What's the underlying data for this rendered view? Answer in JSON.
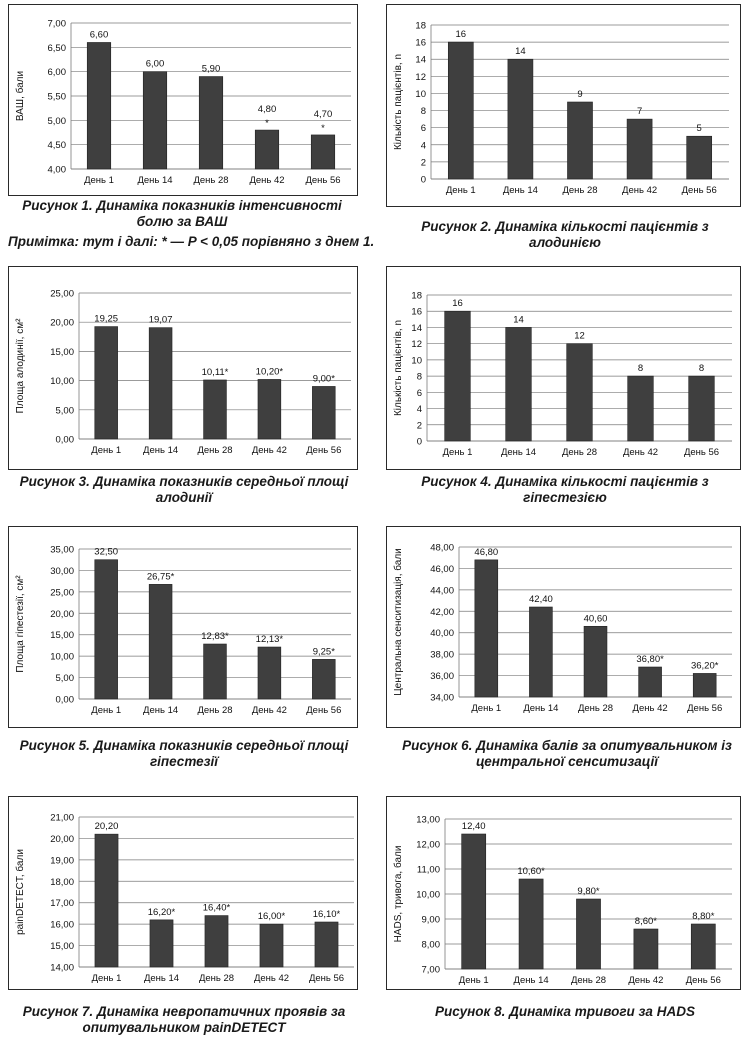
{
  "note": "Примітка: тут і далі: * — P < 0,05 порівняно з днем 1.",
  "chart_data": [
    {
      "type": "bar",
      "categories": [
        "День 1",
        "День 14",
        "День 28",
        "День 42",
        "День 56"
      ],
      "values": [
        6.6,
        6.0,
        5.9,
        4.8,
        4.7
      ],
      "labels": [
        "6,60",
        "6,00",
        "5,90",
        "4,80",
        "4,70"
      ],
      "star_above": [
        false,
        false,
        false,
        true,
        true
      ],
      "ylabel": "ВАШ, бали",
      "ylim": [
        4.0,
        7.0
      ],
      "yticks": [
        4.0,
        4.5,
        5.0,
        5.5,
        6.0,
        6.5,
        7.0
      ],
      "ytick_labels": [
        "4,00",
        "4,50",
        "5,00",
        "5,50",
        "6,00",
        "6,50",
        "7,00"
      ],
      "caption": "Рисунок 1. Динаміка показників інтенсивності болю за ВАШ",
      "grid": true
    },
    {
      "type": "bar",
      "categories": [
        "День 1",
        "День 14",
        "День 28",
        "День 42",
        "День 56"
      ],
      "values": [
        16,
        14,
        9,
        7,
        5
      ],
      "labels": [
        "16",
        "14",
        "9",
        "7",
        "5"
      ],
      "star_above": [
        false,
        false,
        false,
        false,
        false
      ],
      "ylabel": "Кількість пацієнтів, n",
      "ylim": [
        0,
        18
      ],
      "yticks": [
        0,
        2,
        4,
        6,
        8,
        10,
        12,
        14,
        16,
        18
      ],
      "ytick_labels": [
        "0",
        "2",
        "4",
        "6",
        "8",
        "10",
        "12",
        "14",
        "16",
        "18"
      ],
      "caption": "Рисунок 2. Динаміка кількості пацієнтів з алодинією",
      "grid": true
    },
    {
      "type": "bar",
      "categories": [
        "День 1",
        "День 14",
        "День 28",
        "День 42",
        "День 56"
      ],
      "values": [
        19.25,
        19.07,
        10.11,
        10.2,
        9.0
      ],
      "labels": [
        "19,25",
        "19,07",
        "10,11*",
        "10,20*",
        "9,00*"
      ],
      "star_above": [
        false,
        false,
        false,
        false,
        false
      ],
      "ylabel": "Площа алодинії, см²",
      "ylim": [
        0,
        25
      ],
      "yticks": [
        0,
        5,
        10,
        15,
        20,
        25
      ],
      "ytick_labels": [
        "0,00",
        "5,00",
        "10,00",
        "15,00",
        "20,00",
        "25,00"
      ],
      "caption": "Рисунок 3. Динаміка показників середньої площі алодинії",
      "grid": true
    },
    {
      "type": "bar",
      "categories": [
        "День 1",
        "День 14",
        "День 28",
        "День 42",
        "День 56"
      ],
      "values": [
        16,
        14,
        12,
        8,
        8
      ],
      "labels": [
        "16",
        "14",
        "12",
        "8",
        "8"
      ],
      "star_above": [
        false,
        false,
        false,
        false,
        false
      ],
      "ylabel": "Кількість пацієнтів, n",
      "ylim": [
        0,
        18
      ],
      "yticks": [
        0,
        2,
        4,
        6,
        8,
        10,
        12,
        14,
        16,
        18
      ],
      "ytick_labels": [
        "0",
        "2",
        "4",
        "6",
        "8",
        "10",
        "12",
        "14",
        "16",
        "18"
      ],
      "caption": "Рисунок 4. Динаміка кількості пацієнтів з гіпестезією",
      "grid": true
    },
    {
      "type": "bar",
      "categories": [
        "День 1",
        "День 14",
        "День 28",
        "День 42",
        "День 56"
      ],
      "values": [
        32.5,
        26.75,
        12.83,
        12.13,
        9.25
      ],
      "labels": [
        "32,50",
        "26,75*",
        "12,83*",
        "12,13*",
        "9,25*"
      ],
      "star_above": [
        false,
        false,
        false,
        false,
        false
      ],
      "ylabel": "Площа гіпестезії, см²",
      "ylim": [
        0,
        35
      ],
      "yticks": [
        0,
        5,
        10,
        15,
        20,
        25,
        30,
        35
      ],
      "ytick_labels": [
        "0,00",
        "5,00",
        "10,00",
        "15,00",
        "20,00",
        "25,00",
        "30,00",
        "35,00"
      ],
      "caption": "Рисунок 5. Динаміка показників середньої площі гіпестезії",
      "grid": true
    },
    {
      "type": "bar",
      "categories": [
        "День 1",
        "День 14",
        "День 28",
        "День 42",
        "День 56"
      ],
      "values": [
        46.8,
        42.4,
        40.6,
        36.8,
        36.2
      ],
      "labels": [
        "46,80",
        "42,40",
        "40,60",
        "36,80*",
        "36,20*"
      ],
      "star_above": [
        false,
        false,
        false,
        false,
        false
      ],
      "ylabel": "Центральна сенситизація, бали",
      "ylim": [
        34,
        48
      ],
      "yticks": [
        34,
        36,
        38,
        40,
        42,
        44,
        46,
        48
      ],
      "ytick_labels": [
        "34,00",
        "36,00",
        "38,00",
        "40,00",
        "42,00",
        "44,00",
        "46,00",
        "48,00"
      ],
      "caption": "Рисунок 6. Динаміка балів за опитувальником із центральної сенситизації",
      "grid": true
    },
    {
      "type": "bar",
      "categories": [
        "День 1",
        "День 14",
        "День 28",
        "День 42",
        "День 56"
      ],
      "values": [
        20.2,
        16.2,
        16.4,
        16.0,
        16.1
      ],
      "labels": [
        "20,20",
        "16,20*",
        "16,40*",
        "16,00*",
        "16,10*"
      ],
      "star_above": [
        false,
        false,
        false,
        false,
        false
      ],
      "ylabel": "painDETECT, бали",
      "ylim": [
        14,
        21
      ],
      "yticks": [
        14,
        15,
        16,
        17,
        18,
        19,
        20,
        21
      ],
      "ytick_labels": [
        "14,00",
        "15,00",
        "16,00",
        "17,00",
        "18,00",
        "19,00",
        "20,00",
        "21,00"
      ],
      "caption": "Рисунок 7. Динаміка невропатичних проявів за опитувальником painDETECT",
      "grid": true
    },
    {
      "type": "bar",
      "categories": [
        "День 1",
        "День 14",
        "День 28",
        "День 42",
        "День 56"
      ],
      "values": [
        12.4,
        10.6,
        9.8,
        8.6,
        8.8
      ],
      "labels": [
        "12,40",
        "10,60*",
        "9,80*",
        "8,60*",
        "8,80*"
      ],
      "star_above": [
        false,
        false,
        false,
        false,
        false
      ],
      "ylabel": "HADS, тривога, бали",
      "ylim": [
        7,
        13
      ],
      "yticks": [
        7,
        8,
        9,
        10,
        11,
        12,
        13
      ],
      "ytick_labels": [
        "7,00",
        "8,00",
        "9,00",
        "10,00",
        "11,00",
        "12,00",
        "13,00"
      ],
      "caption": "Рисунок 8. Динаміка тривоги за HADS",
      "grid": true
    }
  ],
  "colors": {
    "bar": "#3f3f3f",
    "grid": "#7a7a7a",
    "frame": "#2a2a2a",
    "text": "#111111"
  }
}
